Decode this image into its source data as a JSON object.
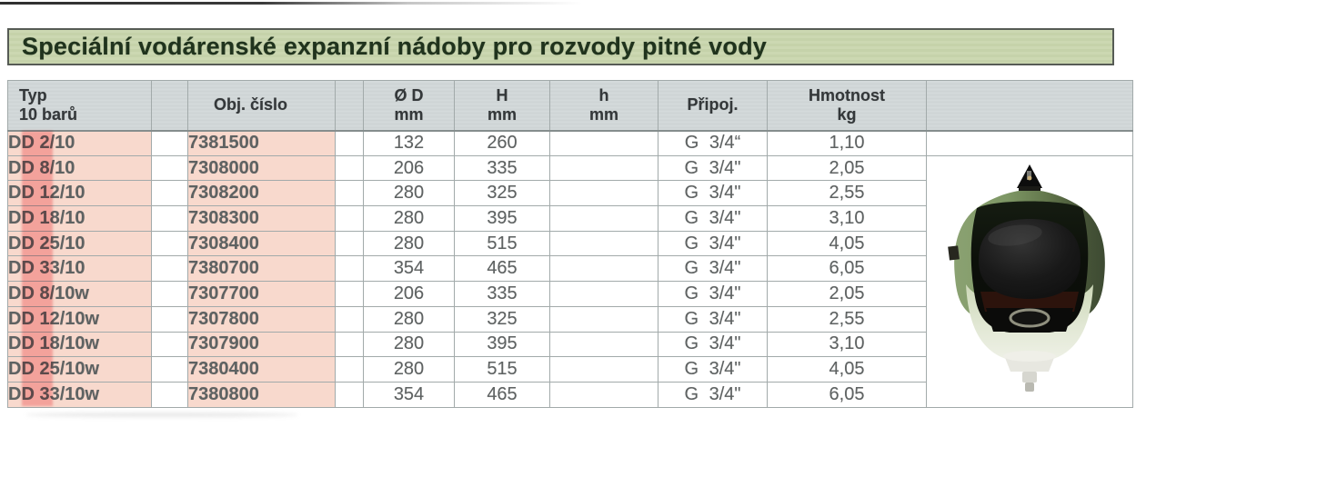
{
  "title": "Speciální vodárenské expanzní nádoby pro rozvody pitné vody",
  "table": {
    "headers": {
      "typ": [
        "Typ",
        "10 barů"
      ],
      "obj": [
        "Obj. číslo"
      ],
      "d": [
        "Ø D",
        "mm"
      ],
      "H": [
        "H",
        "mm"
      ],
      "h": [
        "h",
        "mm"
      ],
      "pripoj": [
        "Připoj."
      ],
      "hmotnost": [
        "Hmotnost",
        "kg"
      ]
    },
    "rows": [
      {
        "typ": "DD 2/10",
        "obj": "7381500",
        "d": "132",
        "H": "260",
        "h": "",
        "pripoj": "G 3/4“",
        "kg": "1,10"
      },
      {
        "typ": "DD 8/10",
        "obj": "7308000",
        "d": "206",
        "H": "335",
        "h": "",
        "pripoj": "G 3/4\"",
        "kg": "2,05"
      },
      {
        "typ": "DD 12/10",
        "obj": "7308200",
        "d": "280",
        "H": "325",
        "h": "",
        "pripoj": "G 3/4\"",
        "kg": "2,55"
      },
      {
        "typ": "DD 18/10",
        "obj": "7308300",
        "d": "280",
        "H": "395",
        "h": "",
        "pripoj": "G 3/4\"",
        "kg": "3,10"
      },
      {
        "typ": "DD 25/10",
        "obj": "7308400",
        "d": "280",
        "H": "515",
        "h": "",
        "pripoj": "G 3/4\"",
        "kg": "4,05"
      },
      {
        "typ": "DD 33/10",
        "obj": "7380700",
        "d": "354",
        "H": "465",
        "h": "",
        "pripoj": "G 3/4\"",
        "kg": "6,05"
      },
      {
        "typ": "DD 8/10w",
        "obj": "7307700",
        "d": "206",
        "H": "335",
        "h": "",
        "pripoj": "G 3/4\"",
        "kg": "2,05"
      },
      {
        "typ": "DD 12/10w",
        "obj": "7307800",
        "d": "280",
        "H": "325",
        "h": "",
        "pripoj": "G 3/4\"",
        "kg": "2,55"
      },
      {
        "typ": "DD 18/10w",
        "obj": "7307900",
        "d": "280",
        "H": "395",
        "h": "",
        "pripoj": "G 3/4\"",
        "kg": "3,10"
      },
      {
        "typ": "DD 25/10w",
        "obj": "7380400",
        "d": "280",
        "H": "515",
        "h": "",
        "pripoj": "G 3/4\"",
        "kg": "4,05"
      },
      {
        "typ": "DD 33/10w",
        "obj": "7380800",
        "d": "354",
        "H": "465",
        "h": "",
        "pripoj": "G 3/4\"",
        "kg": "6,05"
      }
    ]
  },
  "colors": {
    "title_bg": "#c8d4ad",
    "header_bg": "#d1d7d8",
    "row_pink_bg": "#f8d9cd",
    "marker_stripe": "#f3646c",
    "typ_text": "#7c2723",
    "vessel_green": "#7e9765"
  }
}
